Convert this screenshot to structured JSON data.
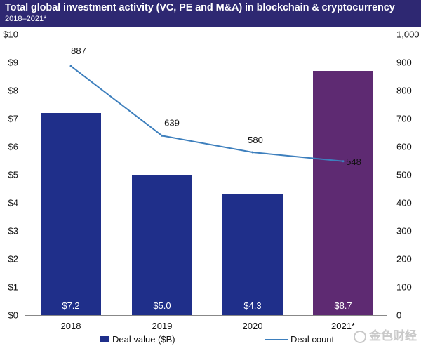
{
  "header": {
    "title": "Total global investment activity (VC, PE and M&A) in blockchain & cryptocurrency",
    "subtitle": "2018–2021*"
  },
  "watermark": "金色财经",
  "colors": {
    "header_bg": "#2e2872",
    "bar_primary": "#1f2f8a",
    "bar_highlight": "#5e2a72",
    "line": "#3d7fbd"
  },
  "chart_data": {
    "type": "bar+line",
    "categories": [
      "2018",
      "2019",
      "2020",
      "2021*"
    ],
    "series": [
      {
        "name": "Deal value ($B)",
        "kind": "bar",
        "axis": "left",
        "values": [
          7.2,
          5.0,
          4.3,
          8.7
        ],
        "labels": [
          "$7.2",
          "$5.0",
          "$4.3",
          "$8.7"
        ],
        "highlight_index": 3
      },
      {
        "name": "Deal count",
        "kind": "line",
        "axis": "right",
        "values": [
          887,
          639,
          580,
          548
        ],
        "labels": [
          "887",
          "639",
          "580",
          "548"
        ]
      }
    ],
    "left_axis": {
      "range": [
        0,
        10
      ],
      "ticks": [
        0,
        1,
        2,
        3,
        4,
        5,
        6,
        7,
        8,
        9,
        10
      ],
      "tick_labels": [
        "$0",
        "$1",
        "$2",
        "$3",
        "$4",
        "$5",
        "$6",
        "$7",
        "$8",
        "$9",
        "$10"
      ]
    },
    "right_axis": {
      "range": [
        0,
        1000
      ],
      "ticks": [
        0,
        100,
        200,
        300,
        400,
        500,
        600,
        700,
        800,
        900,
        1000
      ],
      "tick_labels": [
        "0",
        "100",
        "200",
        "300",
        "400",
        "500",
        "600",
        "700",
        "800",
        "900",
        "1,000"
      ]
    },
    "legend": [
      "Deal value ($B)",
      "Deal count"
    ],
    "legend_position": "bottom",
    "grid": false
  }
}
